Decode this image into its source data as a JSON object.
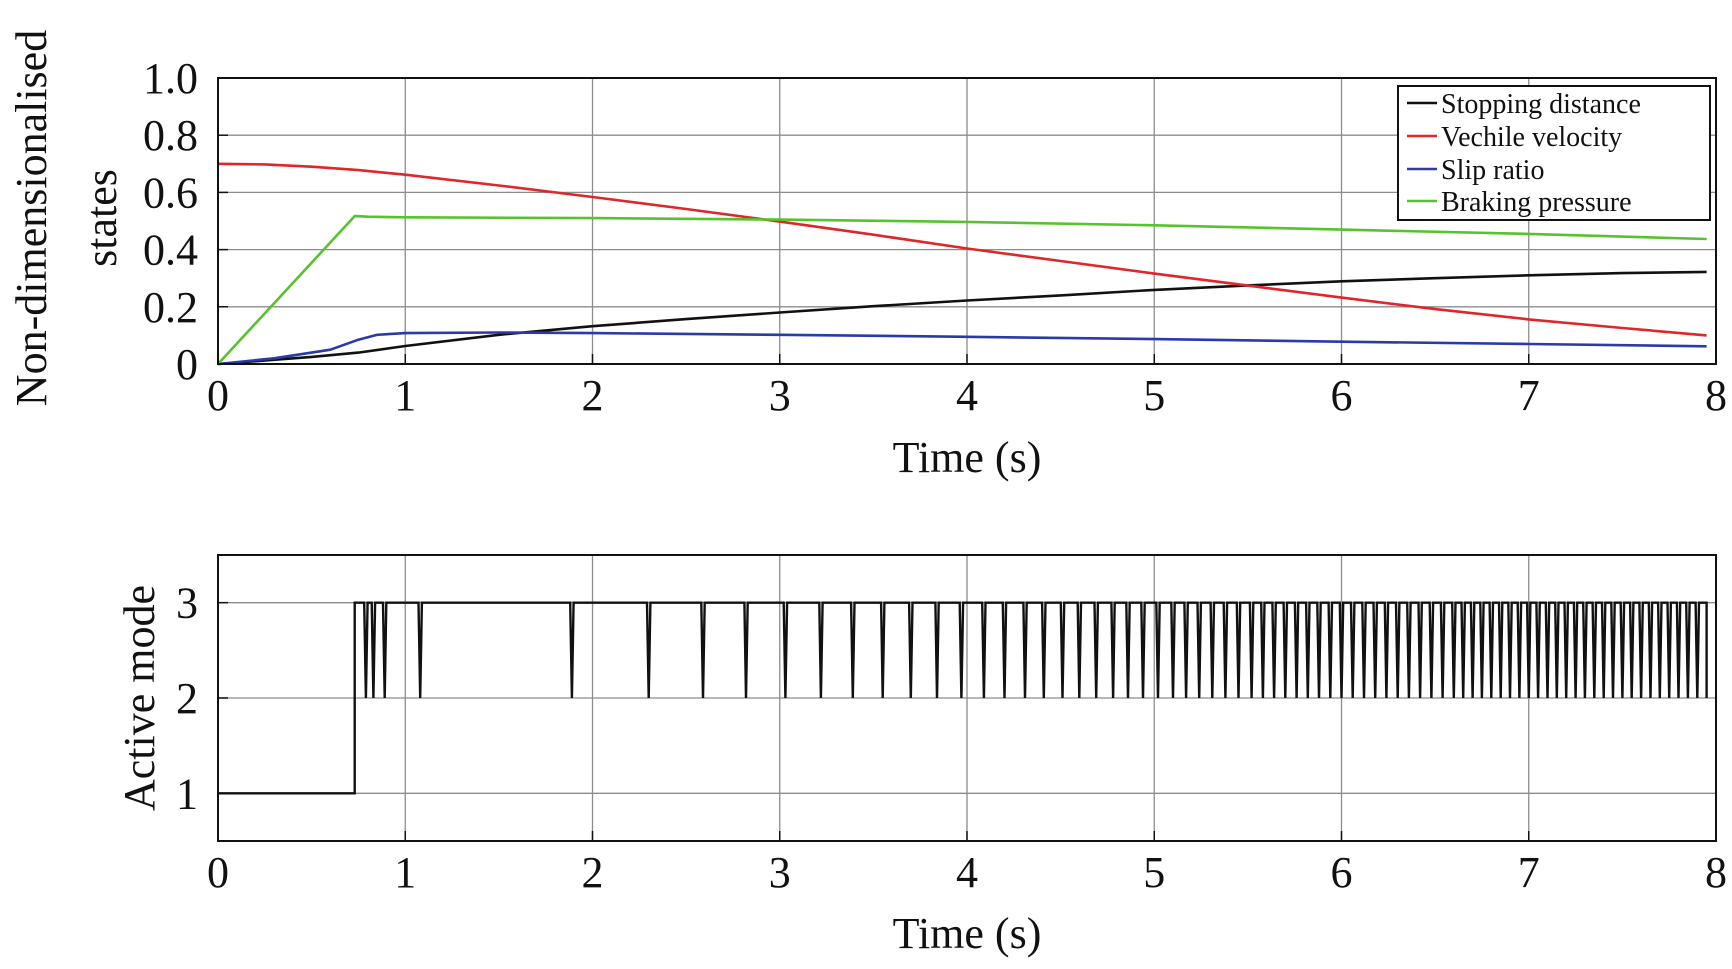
{
  "chart_data": [
    {
      "type": "line",
      "xlabel": "Time (s)",
      "ylabel": [
        "Non-dimensionalised",
        "states"
      ],
      "xlim": [
        0,
        8
      ],
      "ylim": [
        0,
        1.0
      ],
      "xticks": [
        0,
        1,
        2,
        3,
        4,
        5,
        6,
        7,
        8
      ],
      "xtick_labels": [
        "0",
        "1",
        "2",
        "3",
        "4",
        "5",
        "6",
        "7",
        "8"
      ],
      "yticks": [
        0,
        0.2,
        0.4,
        0.6,
        0.8,
        1.0
      ],
      "ytick_labels": [
        "0",
        "0.2",
        "0.4",
        "0.6",
        "0.8",
        "1.0"
      ],
      "grid": true,
      "legend_position": "top-right",
      "series": [
        {
          "name": "Stopping distance",
          "color": "#111111",
          "x": [
            0,
            0.5,
            0.75,
            1,
            1.5,
            2,
            2.5,
            3,
            3.5,
            4,
            4.5,
            5,
            5.5,
            6,
            6.5,
            7,
            7.5,
            7.95
          ],
          "y": [
            0,
            0.025,
            0.04,
            0.063,
            0.102,
            0.132,
            0.157,
            0.18,
            0.202,
            0.222,
            0.24,
            0.259,
            0.275,
            0.289,
            0.3,
            0.31,
            0.318,
            0.322
          ]
        },
        {
          "name": "Vechile velocity",
          "color": "#e0262a",
          "x": [
            0,
            0.25,
            0.5,
            0.75,
            1,
            1.5,
            2,
            2.5,
            3,
            3.5,
            4,
            4.5,
            5,
            5.5,
            6,
            6.5,
            7,
            7.5,
            7.95
          ],
          "y": [
            0.7,
            0.698,
            0.69,
            0.678,
            0.662,
            0.624,
            0.584,
            0.542,
            0.498,
            0.452,
            0.404,
            0.36,
            0.316,
            0.274,
            0.232,
            0.192,
            0.156,
            0.126,
            0.1
          ]
        },
        {
          "name": "Slip ratio",
          "color": "#2a3aa8",
          "x": [
            0,
            0.3,
            0.6,
            0.75,
            0.85,
            1,
            1.5,
            2,
            3,
            4,
            5,
            6,
            7,
            7.95
          ],
          "y": [
            0,
            0.02,
            0.05,
            0.085,
            0.102,
            0.108,
            0.11,
            0.108,
            0.102,
            0.095,
            0.087,
            0.078,
            0.07,
            0.062
          ]
        },
        {
          "name": "Braking pressure",
          "color": "#56c32c",
          "x": [
            0,
            0.73,
            0.8,
            1,
            2,
            3,
            4,
            5,
            6,
            7,
            7.95
          ],
          "y": [
            0,
            0.517,
            0.515,
            0.513,
            0.51,
            0.505,
            0.497,
            0.485,
            0.47,
            0.455,
            0.437
          ]
        }
      ]
    },
    {
      "type": "line",
      "xlabel": "Time (s)",
      "ylabel": "Active mode",
      "xlim": [
        0,
        8
      ],
      "ylim": [
        0.5,
        3.5
      ],
      "xticks": [
        0,
        1,
        2,
        3,
        4,
        5,
        6,
        7,
        8
      ],
      "xtick_labels": [
        "0",
        "1",
        "2",
        "3",
        "4",
        "5",
        "6",
        "7",
        "8"
      ],
      "yticks": [
        1,
        2,
        3
      ],
      "ytick_labels": [
        "1",
        "2",
        "3"
      ],
      "grid": true,
      "series": [
        {
          "color": "#111111",
          "start_time": 0,
          "end_time": 7.95,
          "initial_mode": 1,
          "switch_time": 0.73,
          "high_mode": 3,
          "low_mode": 2,
          "dip_times": [
            0.79,
            0.83,
            0.89,
            1.08,
            1.89,
            2.3,
            2.59,
            2.82,
            3.03,
            3.22,
            3.39,
            3.55,
            3.7,
            3.84,
            3.97,
            4.09,
            4.2,
            4.31,
            4.41,
            4.51,
            4.6,
            4.69,
            4.78,
            4.86,
            4.94,
            5.02,
            5.1,
            5.17,
            5.24,
            5.31,
            5.38,
            5.45,
            5.52,
            5.58,
            5.64,
            5.7,
            5.76,
            5.82,
            5.88,
            5.94,
            6.0,
            6.06,
            6.12,
            6.18,
            6.24,
            6.3,
            6.36,
            6.42,
            6.48,
            6.54,
            6.6,
            6.65,
            6.7,
            6.75,
            6.8,
            6.85,
            6.9,
            6.95,
            7.0,
            7.05,
            7.1,
            7.15,
            7.2,
            7.25,
            7.3,
            7.35,
            7.4,
            7.45,
            7.5,
            7.55,
            7.6,
            7.65,
            7.7,
            7.75,
            7.8,
            7.85,
            7.9
          ]
        }
      ]
    }
  ]
}
